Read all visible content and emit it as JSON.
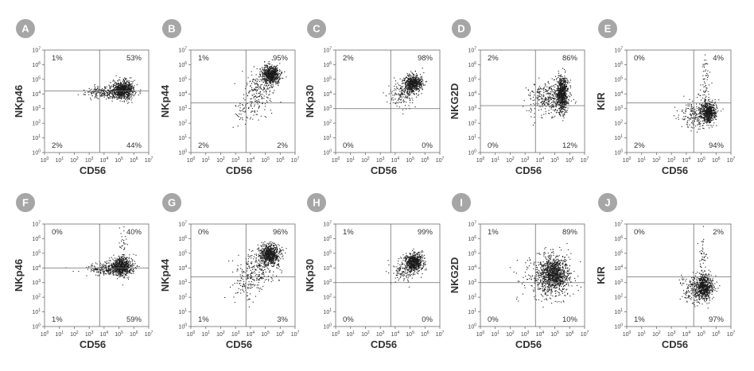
{
  "figure": {
    "tick_exponents": [
      "0",
      "1",
      "2",
      "3",
      "4",
      "5",
      "6",
      "7"
    ],
    "tick_base": "10",
    "point_color": "#1a1a1a",
    "badge_color": "#a6a6a6",
    "axis_color": "#6e6e6e"
  },
  "chart_data": [
    {
      "panel": "A",
      "type": "scatter",
      "xlabel": "CD56",
      "ylabel": "NKp46",
      "xlim": [
        0,
        7
      ],
      "ylim": [
        0,
        7
      ],
      "gate_x": 3.7,
      "gate_y": 4.2,
      "quadrants": {
        "top_left": "1%",
        "top_right": "53%",
        "bottom_left": "2%",
        "bottom_right": "44%"
      },
      "clusters": [
        {
          "cx": 5.3,
          "cy": 4.3,
          "sx": 0.35,
          "sy": 0.32,
          "n": 700
        },
        {
          "cx": 4.2,
          "cy": 4.1,
          "sx": 0.7,
          "sy": 0.2,
          "n": 260
        }
      ]
    },
    {
      "panel": "B",
      "type": "scatter",
      "xlabel": "CD56",
      "ylabel": "NKp44",
      "xlim": [
        0,
        7
      ],
      "ylim": [
        0,
        7
      ],
      "gate_x": 3.7,
      "gate_y": 3.4,
      "quadrants": {
        "top_left": "1%",
        "top_right": "95%",
        "bottom_left": "2%",
        "bottom_right": "2%"
      },
      "clusters": [
        {
          "cx": 5.4,
          "cy": 5.3,
          "sx": 0.3,
          "sy": 0.3,
          "n": 650
        },
        {
          "cx": 4.6,
          "cy": 4.3,
          "sx": 0.5,
          "sy": 0.7,
          "n": 200
        },
        {
          "cx": 3.7,
          "cy": 2.8,
          "sx": 0.6,
          "sy": 0.5,
          "n": 70
        }
      ]
    },
    {
      "panel": "C",
      "type": "scatter",
      "xlabel": "CD56",
      "ylabel": "NKp30",
      "xlim": [
        0,
        7
      ],
      "ylim": [
        0,
        7
      ],
      "gate_x": 3.7,
      "gate_y": 3.0,
      "quadrants": {
        "top_left": "2%",
        "top_right": "98%",
        "bottom_left": "0%",
        "bottom_right": "0%"
      },
      "clusters": [
        {
          "cx": 5.2,
          "cy": 4.7,
          "sx": 0.3,
          "sy": 0.3,
          "n": 600
        },
        {
          "cx": 4.5,
          "cy": 4.0,
          "sx": 0.5,
          "sy": 0.45,
          "n": 160
        }
      ]
    },
    {
      "panel": "D",
      "type": "scatter",
      "xlabel": "CD56",
      "ylabel": "NKG2D",
      "xlim": [
        0,
        7
      ],
      "ylim": [
        0,
        7
      ],
      "gate_x": 3.7,
      "gate_y": 3.2,
      "quadrants": {
        "top_left": "2%",
        "top_right": "86%",
        "bottom_left": "0%",
        "bottom_right": "12%"
      },
      "clusters": [
        {
          "cx": 5.5,
          "cy": 4.0,
          "sx": 0.18,
          "sy": 0.6,
          "n": 700
        },
        {
          "cx": 4.6,
          "cy": 3.7,
          "sx": 0.7,
          "sy": 0.6,
          "n": 400
        }
      ]
    },
    {
      "panel": "E",
      "type": "scatter",
      "xlabel": "CD56",
      "ylabel": "KIR",
      "xlim": [
        0,
        7
      ],
      "ylim": [
        0,
        7
      ],
      "gate_x": 4.5,
      "gate_y": 3.4,
      "quadrants": {
        "top_left": "0%",
        "top_right": "4%",
        "bottom_left": "2%",
        "bottom_right": "94%"
      },
      "clusters": [
        {
          "cx": 5.5,
          "cy": 2.7,
          "sx": 0.25,
          "sy": 0.35,
          "n": 600
        },
        {
          "cx": 4.7,
          "cy": 2.6,
          "sx": 0.6,
          "sy": 0.5,
          "n": 220
        },
        {
          "cx": 5.3,
          "cy": 5.0,
          "sx": 0.15,
          "sy": 0.9,
          "n": 60
        }
      ]
    },
    {
      "panel": "F",
      "type": "scatter",
      "xlabel": "CD56",
      "ylabel": "NKp46",
      "xlim": [
        0,
        7
      ],
      "ylim": [
        0,
        7
      ],
      "gate_x": 3.7,
      "gate_y": 4.0,
      "quadrants": {
        "top_left": "0%",
        "top_right": "40%",
        "bottom_left": "1%",
        "bottom_right": "59%"
      },
      "clusters": [
        {
          "cx": 5.2,
          "cy": 4.1,
          "sx": 0.35,
          "sy": 0.3,
          "n": 650
        },
        {
          "cx": 4.2,
          "cy": 3.9,
          "sx": 0.7,
          "sy": 0.22,
          "n": 260
        },
        {
          "cx": 5.3,
          "cy": 5.3,
          "sx": 0.15,
          "sy": 0.7,
          "n": 40
        }
      ]
    },
    {
      "panel": "G",
      "type": "scatter",
      "xlabel": "CD56",
      "ylabel": "NKp44",
      "xlim": [
        0,
        7
      ],
      "ylim": [
        0,
        7
      ],
      "gate_x": 3.7,
      "gate_y": 3.4,
      "quadrants": {
        "top_left": "0%",
        "top_right": "96%",
        "bottom_left": "1%",
        "bottom_right": "3%"
      },
      "clusters": [
        {
          "cx": 5.3,
          "cy": 4.9,
          "sx": 0.35,
          "sy": 0.35,
          "n": 700
        },
        {
          "cx": 4.4,
          "cy": 3.9,
          "sx": 0.6,
          "sy": 0.7,
          "n": 250
        },
        {
          "cx": 3.7,
          "cy": 2.8,
          "sx": 0.5,
          "sy": 0.5,
          "n": 60
        }
      ]
    },
    {
      "panel": "H",
      "type": "scatter",
      "xlabel": "CD56",
      "ylabel": "NKp30",
      "xlim": [
        0,
        7
      ],
      "ylim": [
        0,
        7
      ],
      "gate_x": 3.7,
      "gate_y": 3.0,
      "quadrants": {
        "top_left": "1%",
        "top_right": "99%",
        "bottom_left": "0%",
        "bottom_right": "0%"
      },
      "clusters": [
        {
          "cx": 5.3,
          "cy": 4.4,
          "sx": 0.3,
          "sy": 0.3,
          "n": 600
        },
        {
          "cx": 4.6,
          "cy": 3.8,
          "sx": 0.45,
          "sy": 0.4,
          "n": 150
        }
      ]
    },
    {
      "panel": "I",
      "type": "scatter",
      "xlabel": "CD56",
      "ylabel": "NKG2D",
      "xlim": [
        0,
        7
      ],
      "ylim": [
        0,
        7
      ],
      "gate_x": 3.7,
      "gate_y": 3.0,
      "quadrants": {
        "top_left": "1%",
        "top_right": "89%",
        "bottom_left": "0%",
        "bottom_right": "10%"
      },
      "clusters": [
        {
          "cx": 5.0,
          "cy": 3.6,
          "sx": 0.45,
          "sy": 0.55,
          "n": 900
        },
        {
          "cx": 4.4,
          "cy": 3.3,
          "sx": 0.8,
          "sy": 0.8,
          "n": 350
        }
      ]
    },
    {
      "panel": "J",
      "type": "scatter",
      "xlabel": "CD56",
      "ylabel": "KIR",
      "xlim": [
        0,
        7
      ],
      "ylim": [
        0,
        7
      ],
      "gate_x": 4.5,
      "gate_y": 3.4,
      "quadrants": {
        "top_left": "0%",
        "top_right": "2%",
        "bottom_left": "1%",
        "bottom_right": "97%"
      },
      "clusters": [
        {
          "cx": 5.2,
          "cy": 2.7,
          "sx": 0.3,
          "sy": 0.4,
          "n": 600
        },
        {
          "cx": 4.6,
          "cy": 2.5,
          "sx": 0.55,
          "sy": 0.5,
          "n": 200
        },
        {
          "cx": 5.1,
          "cy": 4.6,
          "sx": 0.15,
          "sy": 0.9,
          "n": 50
        }
      ]
    }
  ]
}
